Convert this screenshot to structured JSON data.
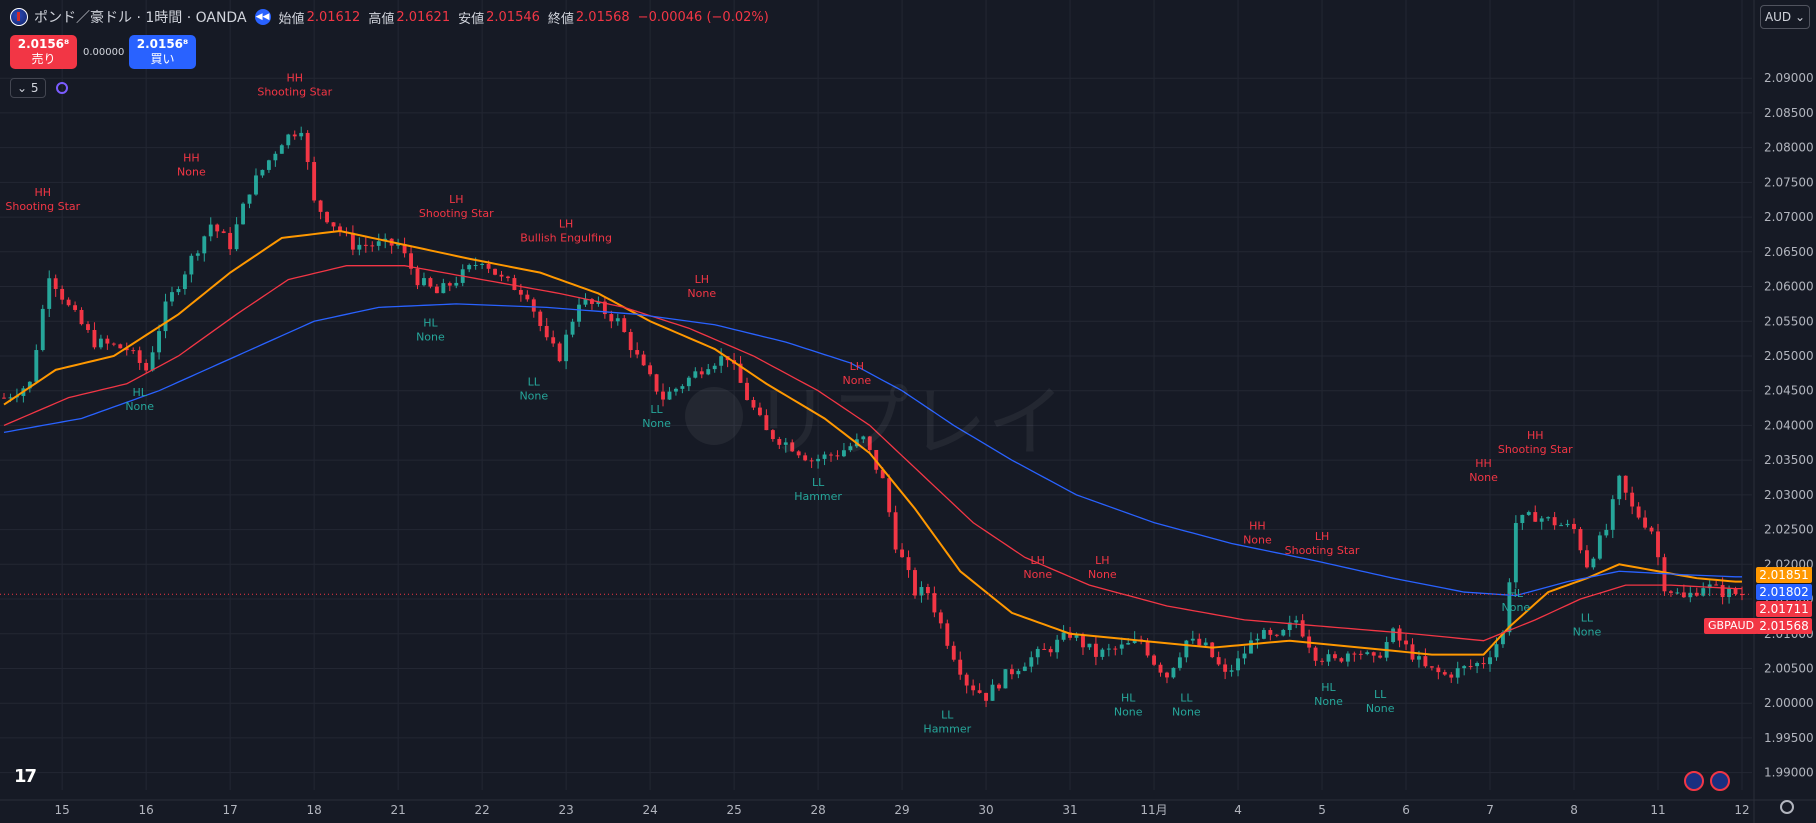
{
  "header": {
    "title": "ポンド／豪ドル · 1時間 · OANDA",
    "ohlc": [
      {
        "k": "始値",
        "v": "2.01612"
      },
      {
        "k": "高値",
        "v": "2.01621"
      },
      {
        "k": "安値",
        "v": "2.01546"
      },
      {
        "k": "終値",
        "v": "2.01568"
      }
    ],
    "change": "−0.00046 (−0.02%)"
  },
  "trade": {
    "sell_price": "2.0156⁸",
    "sell_label": "売り",
    "spread": "0.00000",
    "buy_price": "2.0156⁸",
    "buy_label": "買い"
  },
  "indicators": {
    "count": "5"
  },
  "currency": "AUD",
  "watermark": "リプレイ",
  "symbol_label": "GBPAUD",
  "colors": {
    "up": "#26a69a",
    "down": "#f23645",
    "ema_fast": "#ff9800",
    "ema_mid": "#f23645",
    "ema_slow": "#2962ff",
    "bg": "#161a25"
  },
  "chart_data": {
    "type": "candlestick",
    "title": "ポンド／豪ドル · 1時間 · OANDA",
    "ylim": [
      1.9875,
      2.0955
    ],
    "y_ticks": [
      "2.09000",
      "2.08500",
      "2.08000",
      "2.07500",
      "2.07000",
      "2.06500",
      "2.06000",
      "2.05500",
      "2.05000",
      "2.04500",
      "2.04000",
      "2.03500",
      "2.03000",
      "2.02500",
      "2.02000",
      "2.01500",
      "2.01000",
      "2.00500",
      "2.00000",
      "1.99500",
      "1.99000"
    ],
    "x_ticks": [
      {
        "label": "15",
        "i": 9
      },
      {
        "label": "16",
        "i": 22
      },
      {
        "label": "17",
        "i": 35
      },
      {
        "label": "18",
        "i": 48
      },
      {
        "label": "21",
        "i": 61
      },
      {
        "label": "22",
        "i": 74
      },
      {
        "label": "23",
        "i": 87
      },
      {
        "label": "24",
        "i": 100
      },
      {
        "label": "25",
        "i": 113
      },
      {
        "label": "28",
        "i": 126
      },
      {
        "label": "29",
        "i": 139
      },
      {
        "label": "30",
        "i": 152
      },
      {
        "label": "31",
        "i": 165
      },
      {
        "label": "11月",
        "i": 178
      },
      {
        "label": "4",
        "i": 191
      },
      {
        "label": "5",
        "i": 204
      },
      {
        "label": "6",
        "i": 217
      },
      {
        "label": "7",
        "i": 230
      },
      {
        "label": "8",
        "i": 243
      },
      {
        "label": "11",
        "i": 256
      },
      {
        "label": "12",
        "i": 269
      }
    ],
    "close_path": [
      [
        0,
        2.044
      ],
      [
        4,
        2.046
      ],
      [
        7,
        2.062
      ],
      [
        10,
        2.057
      ],
      [
        14,
        2.052
      ],
      [
        19,
        2.051
      ],
      [
        22,
        2.048
      ],
      [
        25,
        2.057
      ],
      [
        29,
        2.064
      ],
      [
        32,
        2.069
      ],
      [
        35,
        2.066
      ],
      [
        38,
        2.074
      ],
      [
        43,
        2.081
      ],
      [
        46,
        2.083
      ],
      [
        48,
        2.072
      ],
      [
        51,
        2.069
      ],
      [
        54,
        2.066
      ],
      [
        57,
        2.066
      ],
      [
        61,
        2.066
      ],
      [
        64,
        2.061
      ],
      [
        67,
        2.059
      ],
      [
        70,
        2.061
      ],
      [
        74,
        2.064
      ],
      [
        77,
        2.061
      ],
      [
        81,
        2.059
      ],
      [
        84,
        2.052
      ],
      [
        86,
        2.05
      ],
      [
        89,
        2.058
      ],
      [
        92,
        2.057
      ],
      [
        95,
        2.055
      ],
      [
        99,
        2.048
      ],
      [
        102,
        2.044
      ],
      [
        105,
        2.046
      ],
      [
        109,
        2.049
      ],
      [
        112,
        2.05
      ],
      [
        115,
        2.044
      ],
      [
        118,
        2.039
      ],
      [
        122,
        2.037
      ],
      [
        125,
        2.035
      ],
      [
        129,
        2.036
      ],
      [
        133,
        2.038
      ],
      [
        136,
        2.032
      ],
      [
        138,
        2.023
      ],
      [
        141,
        2.016
      ],
      [
        143,
        2.016
      ],
      [
        146,
        2.009
      ],
      [
        149,
        2.003
      ],
      [
        152,
        2.001
      ],
      [
        155,
        2.004
      ],
      [
        158,
        2.006
      ],
      [
        162,
        2.008
      ],
      [
        165,
        2.01
      ],
      [
        169,
        2.007
      ],
      [
        173,
        2.008
      ],
      [
        176,
        2.009
      ],
      [
        178,
        2.006
      ],
      [
        180,
        2.004
      ],
      [
        183,
        2.009
      ],
      [
        186,
        2.008
      ],
      [
        189,
        2.004
      ],
      [
        191,
        2.006
      ],
      [
        194,
        2.01
      ],
      [
        197,
        2.009
      ],
      [
        200,
        2.012
      ],
      [
        203,
        2.007
      ],
      [
        206,
        2.006
      ],
      [
        209,
        2.008
      ],
      [
        212,
        2.006
      ],
      [
        215,
        2.01
      ],
      [
        218,
        2.007
      ],
      [
        220,
        2.005
      ],
      [
        223,
        2.004
      ],
      [
        226,
        2.005
      ],
      [
        229,
        2.006
      ],
      [
        232,
        2.01
      ],
      [
        234,
        2.026
      ],
      [
        237,
        2.027
      ],
      [
        240,
        2.026
      ],
      [
        243,
        2.025
      ],
      [
        245,
        2.02
      ],
      [
        248,
        2.025
      ],
      [
        250,
        2.032
      ],
      [
        252,
        2.028
      ],
      [
        255,
        2.025
      ],
      [
        257,
        2.017
      ],
      [
        260,
        2.015
      ],
      [
        263,
        2.017
      ],
      [
        266,
        2.016
      ],
      [
        269,
        2.0157
      ]
    ],
    "series": [
      {
        "name": "",
        "color": "#ff9800",
        "values": [
          [
            0,
            2.043
          ],
          [
            8,
            2.048
          ],
          [
            17,
            2.05
          ],
          [
            27,
            2.056
          ],
          [
            35,
            2.062
          ],
          [
            43,
            2.067
          ],
          [
            52,
            2.068
          ],
          [
            62,
            2.066
          ],
          [
            72,
            2.064
          ],
          [
            83,
            2.062
          ],
          [
            92,
            2.059
          ],
          [
            100,
            2.055
          ],
          [
            110,
            2.051
          ],
          [
            118,
            2.046
          ],
          [
            127,
            2.041
          ],
          [
            134,
            2.036
          ],
          [
            141,
            2.028
          ],
          [
            148,
            2.019
          ],
          [
            156,
            2.013
          ],
          [
            165,
            2.01
          ],
          [
            176,
            2.009
          ],
          [
            187,
            2.008
          ],
          [
            199,
            2.009
          ],
          [
            210,
            2.008
          ],
          [
            221,
            2.007
          ],
          [
            229,
            2.007
          ],
          [
            233,
            2.011
          ],
          [
            239,
            2.016
          ],
          [
            245,
            2.018
          ],
          [
            250,
            2.02
          ],
          [
            256,
            2.019
          ],
          [
            262,
            2.018
          ],
          [
            268,
            2.0175
          ]
        ]
      },
      {
        "name": "",
        "color": "#f23645",
        "values": [
          [
            0,
            2.04
          ],
          [
            10,
            2.044
          ],
          [
            19,
            2.046
          ],
          [
            27,
            2.05
          ],
          [
            36,
            2.056
          ],
          [
            44,
            2.061
          ],
          [
            53,
            2.063
          ],
          [
            62,
            2.063
          ],
          [
            74,
            2.061
          ],
          [
            86,
            2.059
          ],
          [
            96,
            2.057
          ],
          [
            106,
            2.054
          ],
          [
            116,
            2.05
          ],
          [
            126,
            2.045
          ],
          [
            134,
            2.04
          ],
          [
            142,
            2.033
          ],
          [
            150,
            2.026
          ],
          [
            158,
            2.021
          ],
          [
            168,
            2.017
          ],
          [
            180,
            2.014
          ],
          [
            192,
            2.012
          ],
          [
            205,
            2.011
          ],
          [
            218,
            2.01
          ],
          [
            229,
            2.009
          ],
          [
            237,
            2.012
          ],
          [
            244,
            2.015
          ],
          [
            251,
            2.017
          ],
          [
            258,
            2.017
          ],
          [
            268,
            2.0165
          ]
        ]
      },
      {
        "name": "",
        "color": "#2962ff",
        "values": [
          [
            0,
            2.039
          ],
          [
            12,
            2.041
          ],
          [
            24,
            2.045
          ],
          [
            36,
            2.05
          ],
          [
            48,
            2.055
          ],
          [
            58,
            2.057
          ],
          [
            70,
            2.0575
          ],
          [
            84,
            2.057
          ],
          [
            98,
            2.056
          ],
          [
            110,
            2.0545
          ],
          [
            121,
            2.052
          ],
          [
            131,
            2.049
          ],
          [
            139,
            2.045
          ],
          [
            147,
            2.04
          ],
          [
            156,
            2.035
          ],
          [
            166,
            2.03
          ],
          [
            178,
            2.026
          ],
          [
            190,
            2.023
          ],
          [
            203,
            2.0205
          ],
          [
            215,
            2.018
          ],
          [
            226,
            2.016
          ],
          [
            234,
            2.0155
          ],
          [
            242,
            2.0175
          ],
          [
            250,
            2.019
          ],
          [
            260,
            2.0185
          ],
          [
            268,
            2.0182
          ]
        ]
      }
    ],
    "price_labels": [
      {
        "value": "2.01851",
        "color": "#ff9800",
        "price": 2.01851
      },
      {
        "value": "2.01802",
        "color": "#2962ff",
        "price": 2.01802
      },
      {
        "value": "2.01711",
        "color": "#f23645",
        "price": 2.01711
      },
      {
        "value": "2.01568",
        "color": "#f23645",
        "price": 2.01568
      }
    ],
    "last_price": 2.01568,
    "annotations": [
      {
        "i": 6,
        "price": 2.071,
        "l1": "HH",
        "l2": "Shooting Star",
        "side": "top",
        "c": "down"
      },
      {
        "i": 29,
        "price": 2.076,
        "l1": "HH",
        "l2": "None",
        "side": "top",
        "c": "down"
      },
      {
        "i": 45,
        "price": 2.0875,
        "l1": "HH",
        "l2": "Shooting Star",
        "side": "top",
        "c": "down"
      },
      {
        "i": 70,
        "price": 2.07,
        "l1": "LH",
        "l2": "Shooting Star",
        "side": "top",
        "c": "down"
      },
      {
        "i": 87,
        "price": 2.0665,
        "l1": "LH",
        "l2": "Bullish Engulfing",
        "side": "top",
        "c": "down"
      },
      {
        "i": 108,
        "price": 2.0585,
        "l1": "LH",
        "l2": "None",
        "side": "top",
        "c": "down"
      },
      {
        "i": 132,
        "price": 2.046,
        "l1": "LH",
        "l2": "None",
        "side": "top",
        "c": "down"
      },
      {
        "i": 194,
        "price": 2.023,
        "l1": "HH",
        "l2": "None",
        "side": "top",
        "c": "down"
      },
      {
        "i": 204,
        "price": 2.0215,
        "l1": "LH",
        "l2": "Shooting Star",
        "side": "top",
        "c": "down"
      },
      {
        "i": 160,
        "price": 2.018,
        "l1": "LH",
        "l2": "None",
        "side": "top",
        "c": "down"
      },
      {
        "i": 170,
        "price": 2.018,
        "l1": "LH",
        "l2": "None",
        "side": "top",
        "c": "down"
      },
      {
        "i": 229,
        "price": 2.032,
        "l1": "HH",
        "l2": "None",
        "side": "top",
        "c": "down"
      },
      {
        "i": 237,
        "price": 2.036,
        "l1": "HH",
        "l2": "Shooting Star",
        "side": "top",
        "c": "down"
      },
      {
        "i": 21,
        "price": 2.046,
        "l1": "HL",
        "l2": "None",
        "side": "bottom",
        "c": "up"
      },
      {
        "i": 66,
        "price": 2.056,
        "l1": "HL",
        "l2": "None",
        "side": "bottom",
        "c": "up"
      },
      {
        "i": 82,
        "price": 2.0475,
        "l1": "LL",
        "l2": "None",
        "side": "bottom",
        "c": "up"
      },
      {
        "i": 101,
        "price": 2.0435,
        "l1": "LL",
        "l2": "None",
        "side": "bottom",
        "c": "up"
      },
      {
        "i": 126,
        "price": 2.033,
        "l1": "LL",
        "l2": "Hammer",
        "side": "bottom",
        "c": "up"
      },
      {
        "i": 146,
        "price": 1.9995,
        "l1": "LL",
        "l2": "Hammer",
        "side": "bottom",
        "c": "up"
      },
      {
        "i": 174,
        "price": 2.002,
        "l1": "HL",
        "l2": "None",
        "side": "bottom",
        "c": "up"
      },
      {
        "i": 183,
        "price": 2.002,
        "l1": "LL",
        "l2": "None",
        "side": "bottom",
        "c": "up"
      },
      {
        "i": 205,
        "price": 2.0035,
        "l1": "HL",
        "l2": "None",
        "side": "bottom",
        "c": "up"
      },
      {
        "i": 213,
        "price": 2.0025,
        "l1": "LL",
        "l2": "None",
        "side": "bottom",
        "c": "up"
      },
      {
        "i": 234,
        "price": 2.017,
        "l1": "HL",
        "l2": "None",
        "side": "bottom",
        "c": "up"
      },
      {
        "i": 245,
        "price": 2.0135,
        "l1": "LL",
        "l2": "None",
        "side": "bottom",
        "c": "up"
      }
    ]
  }
}
